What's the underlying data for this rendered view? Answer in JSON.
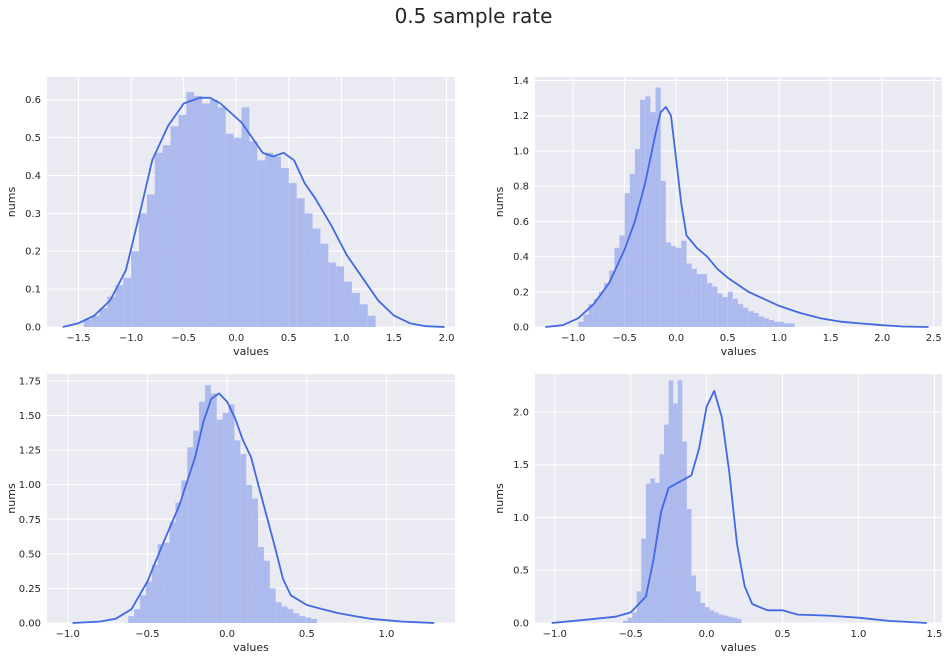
{
  "title": "0.5 sample rate",
  "colors": {
    "background": "#eaeaf2",
    "grid": "#ffffff",
    "hist_fill": "#a6b5ec",
    "kde_line": "#4169e1"
  },
  "chart_data": [
    {
      "type": "bar",
      "subtype": "histogram-with-kde",
      "xlabel": "values",
      "ylabel": "nums",
      "xlim": [
        -1.8,
        2.08
      ],
      "ylim": [
        0,
        0.66
      ],
      "xticks": [
        -1.5,
        -1.0,
        -0.5,
        0.0,
        0.5,
        1.0,
        1.5,
        2.0
      ],
      "xtick_labels": [
        "−1.5",
        "−1.0",
        "−0.5",
        "0.0",
        "0.5",
        "1.0",
        "1.5",
        "2.0"
      ],
      "yticks": [
        0.0,
        0.1,
        0.2,
        0.3,
        0.4,
        0.5,
        0.6
      ],
      "ytick_labels": [
        "0.0",
        "0.1",
        "0.2",
        "0.3",
        "0.4",
        "0.5",
        "0.6"
      ],
      "grid": true,
      "bins_start": -1.45,
      "bin_width": 0.075,
      "bin_heights": [
        0.02,
        0.03,
        0.05,
        0.08,
        0.11,
        0.13,
        0.2,
        0.3,
        0.35,
        0.46,
        0.48,
        0.53,
        0.56,
        0.62,
        0.61,
        0.59,
        0.6,
        0.58,
        0.51,
        0.5,
        0.58,
        0.49,
        0.44,
        0.46,
        0.45,
        0.42,
        0.38,
        0.34,
        0.3,
        0.26,
        0.22,
        0.17,
        0.16,
        0.12,
        0.09,
        0.06,
        0.03
      ],
      "kde_x": [
        -1.65,
        -1.5,
        -1.35,
        -1.2,
        -1.05,
        -0.9,
        -0.8,
        -0.65,
        -0.5,
        -0.35,
        -0.25,
        -0.15,
        -0.05,
        0.05,
        0.15,
        0.25,
        0.35,
        0.45,
        0.55,
        0.65,
        0.75,
        0.9,
        1.05,
        1.2,
        1.35,
        1.5,
        1.65,
        1.8,
        1.98
      ],
      "kde_y": [
        0.0,
        0.01,
        0.03,
        0.07,
        0.15,
        0.32,
        0.44,
        0.53,
        0.59,
        0.605,
        0.605,
        0.59,
        0.565,
        0.54,
        0.5,
        0.46,
        0.45,
        0.46,
        0.44,
        0.38,
        0.34,
        0.27,
        0.19,
        0.13,
        0.07,
        0.03,
        0.01,
        0.002,
        0.0
      ]
    },
    {
      "type": "bar",
      "subtype": "histogram-with-kde",
      "xlabel": "values",
      "ylabel": "nums",
      "xlim": [
        -1.37,
        2.58
      ],
      "ylim": [
        0,
        1.42
      ],
      "xticks": [
        -1.0,
        -0.5,
        0.0,
        0.5,
        1.0,
        1.5,
        2.0,
        2.5
      ],
      "xtick_labels": [
        "−1.0",
        "−0.5",
        "0.0",
        "0.5",
        "1.0",
        "1.5",
        "2.0",
        "2.5"
      ],
      "yticks": [
        0.0,
        0.2,
        0.4,
        0.6,
        0.8,
        1.0,
        1.2,
        1.4
      ],
      "ytick_labels": [
        "0.0",
        "0.2",
        "0.4",
        "0.6",
        "0.8",
        "1.0",
        "1.2",
        "1.4"
      ],
      "grid": true,
      "bins_start": -0.95,
      "bin_width": 0.05,
      "bin_heights": [
        0.03,
        0.07,
        0.13,
        0.16,
        0.2,
        0.25,
        0.32,
        0.45,
        0.52,
        0.76,
        0.87,
        1.01,
        1.29,
        1.31,
        1.22,
        1.36,
        0.83,
        0.48,
        0.46,
        0.45,
        0.49,
        0.36,
        0.33,
        0.3,
        0.3,
        0.25,
        0.23,
        0.19,
        0.17,
        0.2,
        0.16,
        0.13,
        0.11,
        0.09,
        0.08,
        0.06,
        0.05,
        0.04,
        0.03,
        0.03,
        0.02,
        0.02
      ],
      "kde_x": [
        -1.27,
        -1.1,
        -0.95,
        -0.8,
        -0.65,
        -0.5,
        -0.4,
        -0.3,
        -0.2,
        -0.15,
        -0.1,
        -0.05,
        0.0,
        0.05,
        0.1,
        0.2,
        0.3,
        0.4,
        0.5,
        0.6,
        0.7,
        0.85,
        1.0,
        1.2,
        1.4,
        1.6,
        1.8,
        2.0,
        2.2,
        2.45
      ],
      "kde_y": [
        0.0,
        0.01,
        0.05,
        0.13,
        0.25,
        0.44,
        0.6,
        0.82,
        1.1,
        1.22,
        1.25,
        1.2,
        0.95,
        0.7,
        0.52,
        0.45,
        0.4,
        0.33,
        0.28,
        0.24,
        0.2,
        0.16,
        0.12,
        0.08,
        0.05,
        0.03,
        0.02,
        0.01,
        0.003,
        0.0
      ]
    },
    {
      "type": "bar",
      "subtype": "histogram-with-kde",
      "xlabel": "values",
      "ylabel": "nums",
      "xlim": [
        -1.13,
        1.43
      ],
      "ylim": [
        0,
        1.8
      ],
      "xticks": [
        -1.0,
        -0.5,
        0.0,
        0.5,
        1.0
      ],
      "xtick_labels": [
        "−1.0",
        "−0.5",
        "0.0",
        "0.5",
        "1.0"
      ],
      "yticks": [
        0.0,
        0.25,
        0.5,
        0.75,
        1.0,
        1.25,
        1.5,
        1.75
      ],
      "ytick_labels": [
        "0.00",
        "0.25",
        "0.50",
        "0.75",
        "1.00",
        "1.25",
        "1.50",
        "1.75"
      ],
      "grid": true,
      "bins_start": -0.62,
      "bin_width": 0.037,
      "bin_heights": [
        0.05,
        0.1,
        0.2,
        0.3,
        0.42,
        0.57,
        0.58,
        0.73,
        0.87,
        1.03,
        1.27,
        1.39,
        1.6,
        1.72,
        1.66,
        1.47,
        1.52,
        1.58,
        1.32,
        1.22,
        1.0,
        0.9,
        0.55,
        0.45,
        0.25,
        0.15,
        0.12,
        0.1,
        0.07,
        0.05,
        0.04,
        0.03
      ],
      "kde_x": [
        -0.97,
        -0.8,
        -0.7,
        -0.6,
        -0.5,
        -0.4,
        -0.3,
        -0.2,
        -0.15,
        -0.1,
        -0.05,
        0.0,
        0.05,
        0.1,
        0.15,
        0.2,
        0.3,
        0.35,
        0.4,
        0.5,
        0.6,
        0.7,
        0.8,
        0.9,
        1.0,
        1.1,
        1.2,
        1.3
      ],
      "kde_y": [
        0.0,
        0.01,
        0.03,
        0.1,
        0.3,
        0.58,
        0.85,
        1.2,
        1.45,
        1.62,
        1.66,
        1.6,
        1.48,
        1.32,
        1.2,
        0.98,
        0.55,
        0.32,
        0.2,
        0.13,
        0.1,
        0.07,
        0.05,
        0.03,
        0.02,
        0.01,
        0.005,
        0.0
      ]
    },
    {
      "type": "bar",
      "subtype": "histogram-with-kde",
      "xlabel": "values",
      "ylabel": "nums",
      "xlim": [
        -1.13,
        1.55
      ],
      "ylim": [
        0,
        2.36
      ],
      "xticks": [
        -1.0,
        -0.5,
        0.0,
        0.5,
        1.0,
        1.5
      ],
      "xtick_labels": [
        "−1.0",
        "−0.5",
        "0.0",
        "0.5",
        "1.0",
        "1.5"
      ],
      "yticks": [
        0.0,
        0.5,
        1.0,
        1.5,
        2.0
      ],
      "ytick_labels": [
        "0.0",
        "0.5",
        "1.0",
        "1.5",
        "2.0"
      ],
      "grid": true,
      "bins_start": -0.55,
      "bin_width": 0.03,
      "bin_heights": [
        0.02,
        0.05,
        0.1,
        0.3,
        0.8,
        1.32,
        1.37,
        1.33,
        1.6,
        1.88,
        2.3,
        2.08,
        2.3,
        1.72,
        1.08,
        0.45,
        0.3,
        0.19,
        0.15,
        0.12,
        0.1,
        0.08,
        0.07,
        0.06,
        0.05,
        0.04
      ],
      "kde_x": [
        -1.02,
        -0.8,
        -0.6,
        -0.5,
        -0.4,
        -0.35,
        -0.3,
        -0.25,
        -0.2,
        -0.15,
        -0.1,
        -0.05,
        0.0,
        0.05,
        0.1,
        0.15,
        0.2,
        0.25,
        0.3,
        0.4,
        0.5,
        0.6,
        0.8,
        1.0,
        1.2,
        1.45
      ],
      "kde_y": [
        0.0,
        0.03,
        0.06,
        0.1,
        0.25,
        0.6,
        1.05,
        1.28,
        1.32,
        1.36,
        1.4,
        1.65,
        2.05,
        2.2,
        1.95,
        1.42,
        0.75,
        0.35,
        0.18,
        0.12,
        0.12,
        0.08,
        0.07,
        0.05,
        0.02,
        0.0
      ]
    }
  ]
}
